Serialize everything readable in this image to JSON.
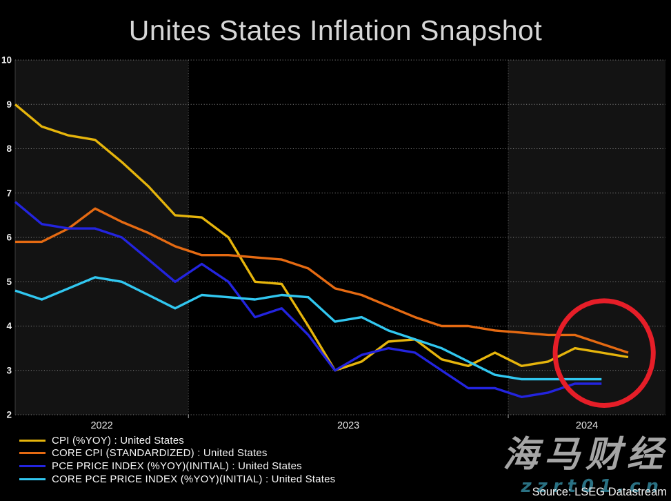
{
  "title": "Unites States Inflation Snapshot",
  "source": "Source: LSEG Datastream",
  "watermark": {
    "brand": "海马财经",
    "site": "zzrt01.cn"
  },
  "legend": [
    {
      "label": "CPI (%YOY) : United States",
      "color": "#e6b50c"
    },
    {
      "label": "CORE CPI (STANDARDIZED) : United States",
      "color": "#e56a12"
    },
    {
      "label": "PCE PRICE INDEX (%YOY)(INITIAL) : United States",
      "color": "#2324df"
    },
    {
      "label": "CORE PCE PRICE INDEX (%YOY)(INITIAL) : United States",
      "color": "#31c7f0"
    }
  ],
  "chart_data": {
    "type": "line",
    "title": "Unites States Inflation Snapshot",
    "xlabel": "",
    "ylabel": "",
    "ylim": [
      2,
      10
    ],
    "y_ticks": [
      10,
      9,
      8,
      7,
      6,
      5,
      4,
      3,
      2
    ],
    "x_tick_labels": [
      "2022",
      "2023",
      "2024"
    ],
    "grid": "dotted",
    "legend_position": "bottom-left",
    "x_months": [
      "2022-06",
      "2022-07",
      "2022-08",
      "2022-09",
      "2022-10",
      "2022-11",
      "2022-12",
      "2023-01",
      "2023-02",
      "2023-03",
      "2023-04",
      "2023-05",
      "2023-06",
      "2023-07",
      "2023-08",
      "2023-09",
      "2023-10",
      "2023-11",
      "2023-12",
      "2024-01",
      "2024-02",
      "2024-03",
      "2024-04",
      "2024-05"
    ],
    "series": [
      {
        "name": "CPI (%YOY) : United States",
        "color": "#e6b50c",
        "values": [
          9.0,
          8.5,
          8.3,
          8.2,
          7.7,
          7.15,
          6.5,
          6.45,
          6.0,
          5.0,
          4.95,
          4.0,
          3.0,
          3.2,
          3.65,
          3.7,
          3.25,
          3.1,
          3.4,
          3.1,
          3.2,
          3.5,
          3.4,
          3.3
        ]
      },
      {
        "name": "CORE CPI (STANDARDIZED) : United States",
        "color": "#e56a12",
        "values": [
          5.9,
          5.9,
          6.2,
          6.65,
          6.35,
          6.1,
          5.8,
          5.6,
          5.6,
          5.55,
          5.5,
          5.3,
          4.85,
          4.7,
          4.45,
          4.2,
          4.0,
          4.0,
          3.9,
          3.85,
          3.8,
          3.8,
          3.6,
          3.4
        ]
      },
      {
        "name": "PCE PRICE INDEX (%YOY)(INITIAL) : United States",
        "color": "#2324df",
        "values": [
          6.8,
          6.3,
          6.2,
          6.2,
          6.0,
          5.5,
          5.0,
          5.4,
          5.0,
          4.2,
          4.4,
          3.8,
          3.0,
          3.35,
          3.5,
          3.4,
          3.0,
          2.6,
          2.6,
          2.4,
          2.5,
          2.7,
          2.7
        ]
      },
      {
        "name": "CORE PCE PRICE INDEX (%YOY)(INITIAL) : United States",
        "color": "#31c7f0",
        "values": [
          4.8,
          4.6,
          4.85,
          5.1,
          5.0,
          4.7,
          4.4,
          4.7,
          4.65,
          4.6,
          4.7,
          4.65,
          4.1,
          4.2,
          3.9,
          3.7,
          3.5,
          3.2,
          2.9,
          2.8,
          2.8,
          2.8,
          2.8
        ]
      }
    ],
    "annotation": {
      "shape": "ellipse",
      "cx_month": 22.1,
      "cy_value": 3.39,
      "rx_months": 1.84,
      "ry_values": 1.18,
      "color": "#e61e28",
      "stroke_width": 7
    }
  }
}
